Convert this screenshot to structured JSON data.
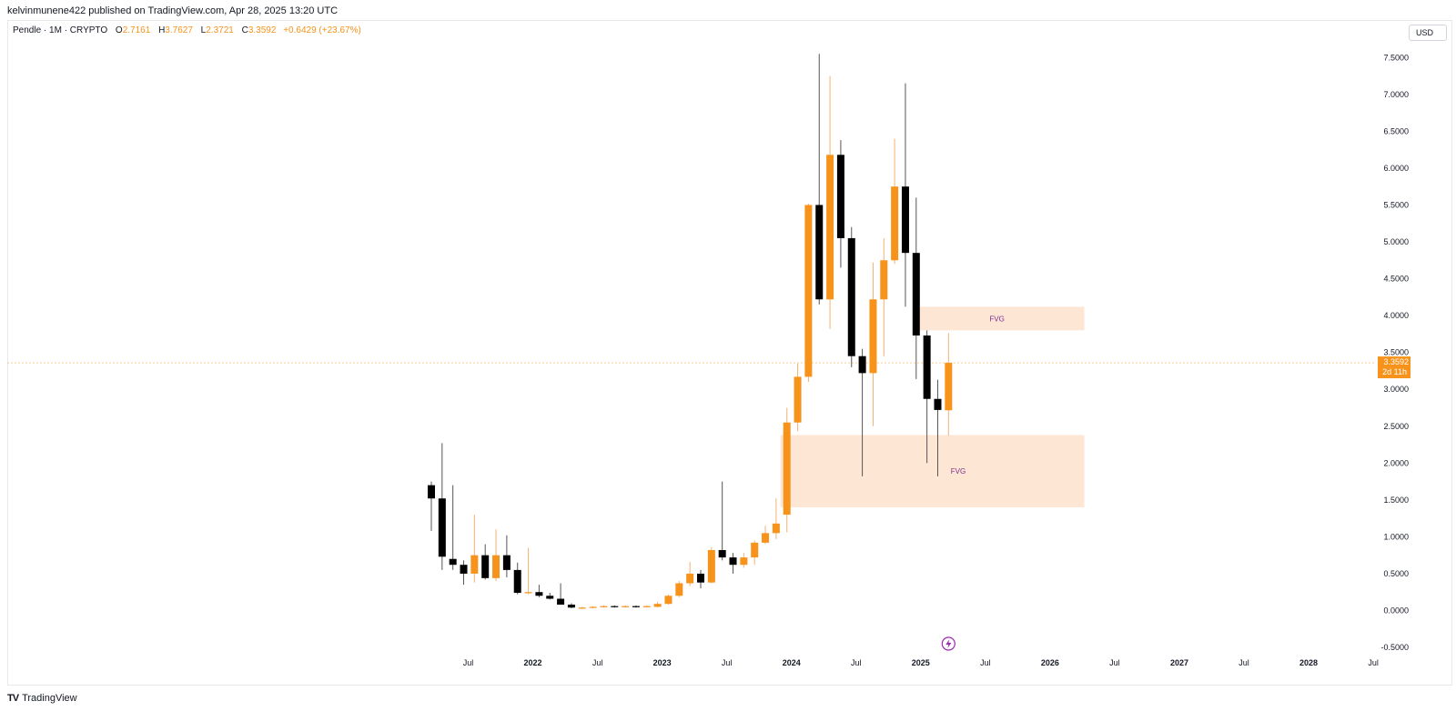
{
  "header": {
    "published_by": "kelvinmunene422 published on TradingView.com, Apr 28, 2025 13:20 UTC"
  },
  "legend": {
    "symbol": "Pendle · 1M · CRYPTO",
    "open_label": "O",
    "open": "2.7161",
    "high_label": "H",
    "high": "3.7627",
    "low_label": "L",
    "low": "2.3721",
    "close_label": "C",
    "close": "3.3592",
    "change": "+0.6429 (+23.67%)"
  },
  "currency": "USD",
  "price_tag": {
    "price": "3.3592",
    "countdown": "2d 11h"
  },
  "footer": {
    "logo": "TV",
    "brand": "TradingView"
  },
  "colors": {
    "up": "#f7931a",
    "down": "#000000",
    "fvg_fill": "#fde3cf",
    "fvg_text": "#7b2d8e",
    "price_line": "#f7931a"
  },
  "icons": {
    "flash": "lightning-icon"
  },
  "chart_data": {
    "type": "candlestick",
    "interval": "1M",
    "ylim": [
      -0.5,
      7.6
    ],
    "y_ticks": [
      "-0.5000",
      "0.0000",
      "0.5000",
      "1.0000",
      "1.5000",
      "2.0000",
      "2.5000",
      "3.0000",
      "3.5000",
      "4.0000",
      "4.5000",
      "5.0000",
      "5.5000",
      "6.0000",
      "6.5000",
      "7.0000",
      "7.5000"
    ],
    "x_ticks": [
      {
        "i": 3,
        "label": "Jul"
      },
      {
        "i": 9,
        "label": "2022"
      },
      {
        "i": 15,
        "label": "Jul"
      },
      {
        "i": 21,
        "label": "2023"
      },
      {
        "i": 27,
        "label": "Jul"
      },
      {
        "i": 33,
        "label": "2024"
      },
      {
        "i": 39,
        "label": "Jul"
      },
      {
        "i": 45,
        "label": "2025"
      },
      {
        "i": 51,
        "label": "Jul"
      },
      {
        "i": 57,
        "label": "2026"
      },
      {
        "i": 63,
        "label": "Jul"
      },
      {
        "i": 69,
        "label": "2027"
      },
      {
        "i": 75,
        "label": "Jul"
      },
      {
        "i": 81,
        "label": "2028"
      },
      {
        "i": 87,
        "label": "Jul"
      }
    ],
    "candles": [
      {
        "o": 1.7,
        "h": 1.75,
        "l": 1.08,
        "c": 1.52
      },
      {
        "o": 1.52,
        "h": 2.27,
        "l": 0.55,
        "c": 0.73
      },
      {
        "o": 0.7,
        "h": 1.7,
        "l": 0.55,
        "c": 0.62
      },
      {
        "o": 0.62,
        "h": 0.68,
        "l": 0.35,
        "c": 0.5
      },
      {
        "o": 0.5,
        "h": 1.3,
        "l": 0.38,
        "c": 0.75
      },
      {
        "o": 0.75,
        "h": 0.9,
        "l": 0.42,
        "c": 0.44
      },
      {
        "o": 0.44,
        "h": 1.1,
        "l": 0.4,
        "c": 0.75
      },
      {
        "o": 0.75,
        "h": 1.02,
        "l": 0.45,
        "c": 0.55
      },
      {
        "o": 0.55,
        "h": 0.65,
        "l": 0.22,
        "c": 0.24
      },
      {
        "o": 0.24,
        "h": 0.85,
        "l": 0.22,
        "c": 0.25
      },
      {
        "o": 0.25,
        "h": 0.35,
        "l": 0.18,
        "c": 0.2
      },
      {
        "o": 0.2,
        "h": 0.24,
        "l": 0.15,
        "c": 0.16
      },
      {
        "o": 0.16,
        "h": 0.37,
        "l": 0.08,
        "c": 0.08
      },
      {
        "o": 0.08,
        "h": 0.1,
        "l": 0.03,
        "c": 0.04
      },
      {
        "o": 0.04,
        "h": 0.05,
        "l": 0.02,
        "c": 0.04
      },
      {
        "o": 0.04,
        "h": 0.06,
        "l": 0.03,
        "c": 0.05
      },
      {
        "o": 0.05,
        "h": 0.07,
        "l": 0.04,
        "c": 0.06
      },
      {
        "o": 0.06,
        "h": 0.07,
        "l": 0.04,
        "c": 0.05
      },
      {
        "o": 0.05,
        "h": 0.07,
        "l": 0.04,
        "c": 0.06
      },
      {
        "o": 0.06,
        "h": 0.07,
        "l": 0.04,
        "c": 0.05
      },
      {
        "o": 0.05,
        "h": 0.07,
        "l": 0.04,
        "c": 0.06
      },
      {
        "o": 0.05,
        "h": 0.12,
        "l": 0.04,
        "c": 0.09
      },
      {
        "o": 0.09,
        "h": 0.22,
        "l": 0.08,
        "c": 0.2
      },
      {
        "o": 0.2,
        "h": 0.4,
        "l": 0.18,
        "c": 0.37
      },
      {
        "o": 0.37,
        "h": 0.66,
        "l": 0.33,
        "c": 0.5
      },
      {
        "o": 0.5,
        "h": 0.55,
        "l": 0.3,
        "c": 0.38
      },
      {
        "o": 0.38,
        "h": 0.86,
        "l": 0.37,
        "c": 0.82
      },
      {
        "o": 0.82,
        "h": 1.75,
        "l": 0.68,
        "c": 0.72
      },
      {
        "o": 0.72,
        "h": 0.78,
        "l": 0.5,
        "c": 0.62
      },
      {
        "o": 0.62,
        "h": 0.78,
        "l": 0.58,
        "c": 0.72
      },
      {
        "o": 0.72,
        "h": 0.95,
        "l": 0.62,
        "c": 0.92
      },
      {
        "o": 0.92,
        "h": 1.15,
        "l": 0.9,
        "c": 1.05
      },
      {
        "o": 1.05,
        "h": 1.52,
        "l": 0.97,
        "c": 1.18
      },
      {
        "o": 1.3,
        "h": 2.75,
        "l": 1.06,
        "c": 2.55
      },
      {
        "o": 2.55,
        "h": 3.35,
        "l": 2.43,
        "c": 3.17
      },
      {
        "o": 3.17,
        "h": 5.52,
        "l": 3.1,
        "c": 5.5
      },
      {
        "o": 5.5,
        "h": 7.55,
        "l": 4.15,
        "c": 4.22
      },
      {
        "o": 4.22,
        "h": 7.25,
        "l": 3.82,
        "c": 6.18
      },
      {
        "o": 6.18,
        "h": 6.38,
        "l": 4.65,
        "c": 5.05
      },
      {
        "o": 5.05,
        "h": 5.2,
        "l": 3.3,
        "c": 3.45
      },
      {
        "o": 3.45,
        "h": 3.55,
        "l": 1.82,
        "c": 3.22
      },
      {
        "o": 3.22,
        "h": 4.72,
        "l": 2.5,
        "c": 4.22
      },
      {
        "o": 4.22,
        "h": 5.05,
        "l": 3.45,
        "c": 4.75
      },
      {
        "o": 4.75,
        "h": 6.4,
        "l": 4.7,
        "c": 5.75
      },
      {
        "o": 5.75,
        "h": 7.15,
        "l": 4.12,
        "c": 4.85
      },
      {
        "o": 4.85,
        "h": 5.6,
        "l": 3.14,
        "c": 3.73
      },
      {
        "o": 3.73,
        "h": 3.8,
        "l": 2.0,
        "c": 2.87
      },
      {
        "o": 2.87,
        "h": 3.13,
        "l": 1.82,
        "c": 2.72
      },
      {
        "o": 2.7161,
        "h": 3.7627,
        "l": 2.3721,
        "c": 3.3592
      }
    ],
    "zones": [
      {
        "label": "FVG",
        "i_start": 44.7,
        "i_end": 60.6,
        "y_low": 3.8,
        "y_high": 4.12
      },
      {
        "label": "FVG",
        "i_start": 32.4,
        "i_end": 60.6,
        "y_low": 1.4,
        "y_high": 2.38
      }
    ],
    "current_price": 3.3592,
    "event_marker_i": 48
  }
}
